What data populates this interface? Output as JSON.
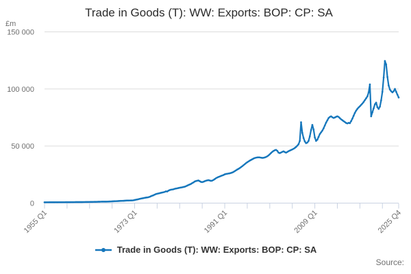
{
  "title": "Trade in Goods (T): WW: Exports: BOP: CP: SA",
  "legend": {
    "label": "Trade in Goods (T): WW: Exports: BOP: CP: SA"
  },
  "source_label": "Source:",
  "colors": {
    "line": "#1677bc",
    "gridline": "#dcdcdc",
    "axis": "#c9d2e2",
    "tick_text": "#6f6f6f",
    "title_text": "#2b2b2b"
  },
  "chart_data": {
    "type": "line",
    "title": "Trade in Goods (T): WW: Exports: BOP: CP: SA",
    "ylabel_unit": "£m",
    "ylim": [
      0,
      150000
    ],
    "grid": "horizontal-only",
    "legend_position": "bottom-center",
    "y_ticks": [
      {
        "value": 150000,
        "label": "150 000"
      },
      {
        "value": 100000,
        "label": "100 000"
      },
      {
        "value": 50000,
        "label": "50 000"
      },
      {
        "value": 0,
        "label": "0"
      }
    ],
    "x_frequency": "quarterly",
    "x_start": "1955 Q1",
    "x_end": "2025 Q4",
    "x_tick_labels": [
      "1955 Q1",
      "1973 Q1",
      "1991 Q1",
      "2009 Q1",
      "2025 Q4"
    ],
    "x_tick_quarter_index": [
      0,
      72,
      144,
      216,
      283
    ],
    "x_minor_tick_quarter_index": [
      0,
      18,
      36,
      54,
      72,
      90,
      108,
      126,
      144,
      162,
      180,
      198,
      216,
      234,
      252,
      270,
      283
    ],
    "series": [
      {
        "name": "Trade in Goods (T): WW: Exports: BOP: CP: SA",
        "values": [
          700,
          710,
          720,
          715,
          730,
          745,
          750,
          760,
          770,
          775,
          765,
          780,
          780,
          775,
          785,
          790,
          795,
          805,
          815,
          830,
          845,
          850,
          860,
          855,
          870,
          880,
          890,
          900,
          905,
          915,
          920,
          930,
          950,
          970,
          990,
          1010,
          1020,
          1040,
          1060,
          1090,
          1120,
          1140,
          1160,
          1180,
          1210,
          1240,
          1260,
          1280,
          1290,
          1280,
          1300,
          1340,
          1420,
          1470,
          1520,
          1570,
          1640,
          1700,
          1760,
          1820,
          1890,
          1950,
          2000,
          2040,
          2120,
          2180,
          2230,
          2270,
          2300,
          2320,
          2360,
          2450,
          2700,
          2950,
          3150,
          3400,
          3700,
          3950,
          4150,
          4350,
          4600,
          4800,
          4950,
          5150,
          5500,
          6000,
          6450,
          6850,
          7400,
          7900,
          8200,
          8450,
          8700,
          9000,
          9250,
          9500,
          9800,
          10300,
          10150,
          10900,
          11400,
          11750,
          11900,
          12100,
          12500,
          12750,
          12950,
          13200,
          13450,
          13650,
          13850,
          14100,
          14350,
          14800,
          15300,
          15850,
          16300,
          16800,
          17500,
          18100,
          18900,
          19300,
          19600,
          19800,
          19200,
          18600,
          18400,
          18700,
          19200,
          19600,
          19900,
          20100,
          19800,
          19500,
          19700,
          20300,
          21000,
          21800,
          22400,
          22900,
          23300,
          23800,
          24200,
          24600,
          25200,
          25500,
          25700,
          25900,
          26100,
          26400,
          26800,
          27300,
          28000,
          28700,
          29400,
          30000,
          30700,
          31500,
          32300,
          33200,
          34100,
          35000,
          35800,
          36500,
          37200,
          37800,
          38400,
          39000,
          39500,
          39800,
          40000,
          40100,
          40000,
          39800,
          39600,
          39700,
          40000,
          40400,
          41000,
          41800,
          42800,
          43900,
          44900,
          45700,
          46300,
          46600,
          45800,
          44200,
          43800,
          44300,
          44900,
          45300,
          44700,
          44200,
          44800,
          45500,
          46000,
          46500,
          47000,
          47600,
          48300,
          49200,
          50300,
          51600,
          54500,
          70800,
          61500,
          57000,
          54000,
          52500,
          53000,
          54500,
          58500,
          64000,
          68500,
          64500,
          57500,
          54500,
          55500,
          58000,
          60500,
          62000,
          63500,
          65500,
          68000,
          70500,
          72500,
          74500,
          75500,
          76000,
          75200,
          74600,
          75000,
          75600,
          76000,
          75500,
          74400,
          73400,
          72600,
          71800,
          71000,
          70200,
          69800,
          70300,
          70000,
          71800,
          74000,
          76500,
          79000,
          81000,
          82500,
          83800,
          84800,
          86000,
          87200,
          88600,
          90200,
          91800,
          93500,
          97000,
          104000,
          76000,
          79500,
          83000,
          86500,
          88000,
          84000,
          82500,
          84500,
          90000,
          97500,
          110000,
          124500,
          121500,
          110500,
          103000,
          99500,
          98000,
          97000,
          98000,
          100000,
          97500,
          95000,
          92500
        ]
      }
    ]
  }
}
